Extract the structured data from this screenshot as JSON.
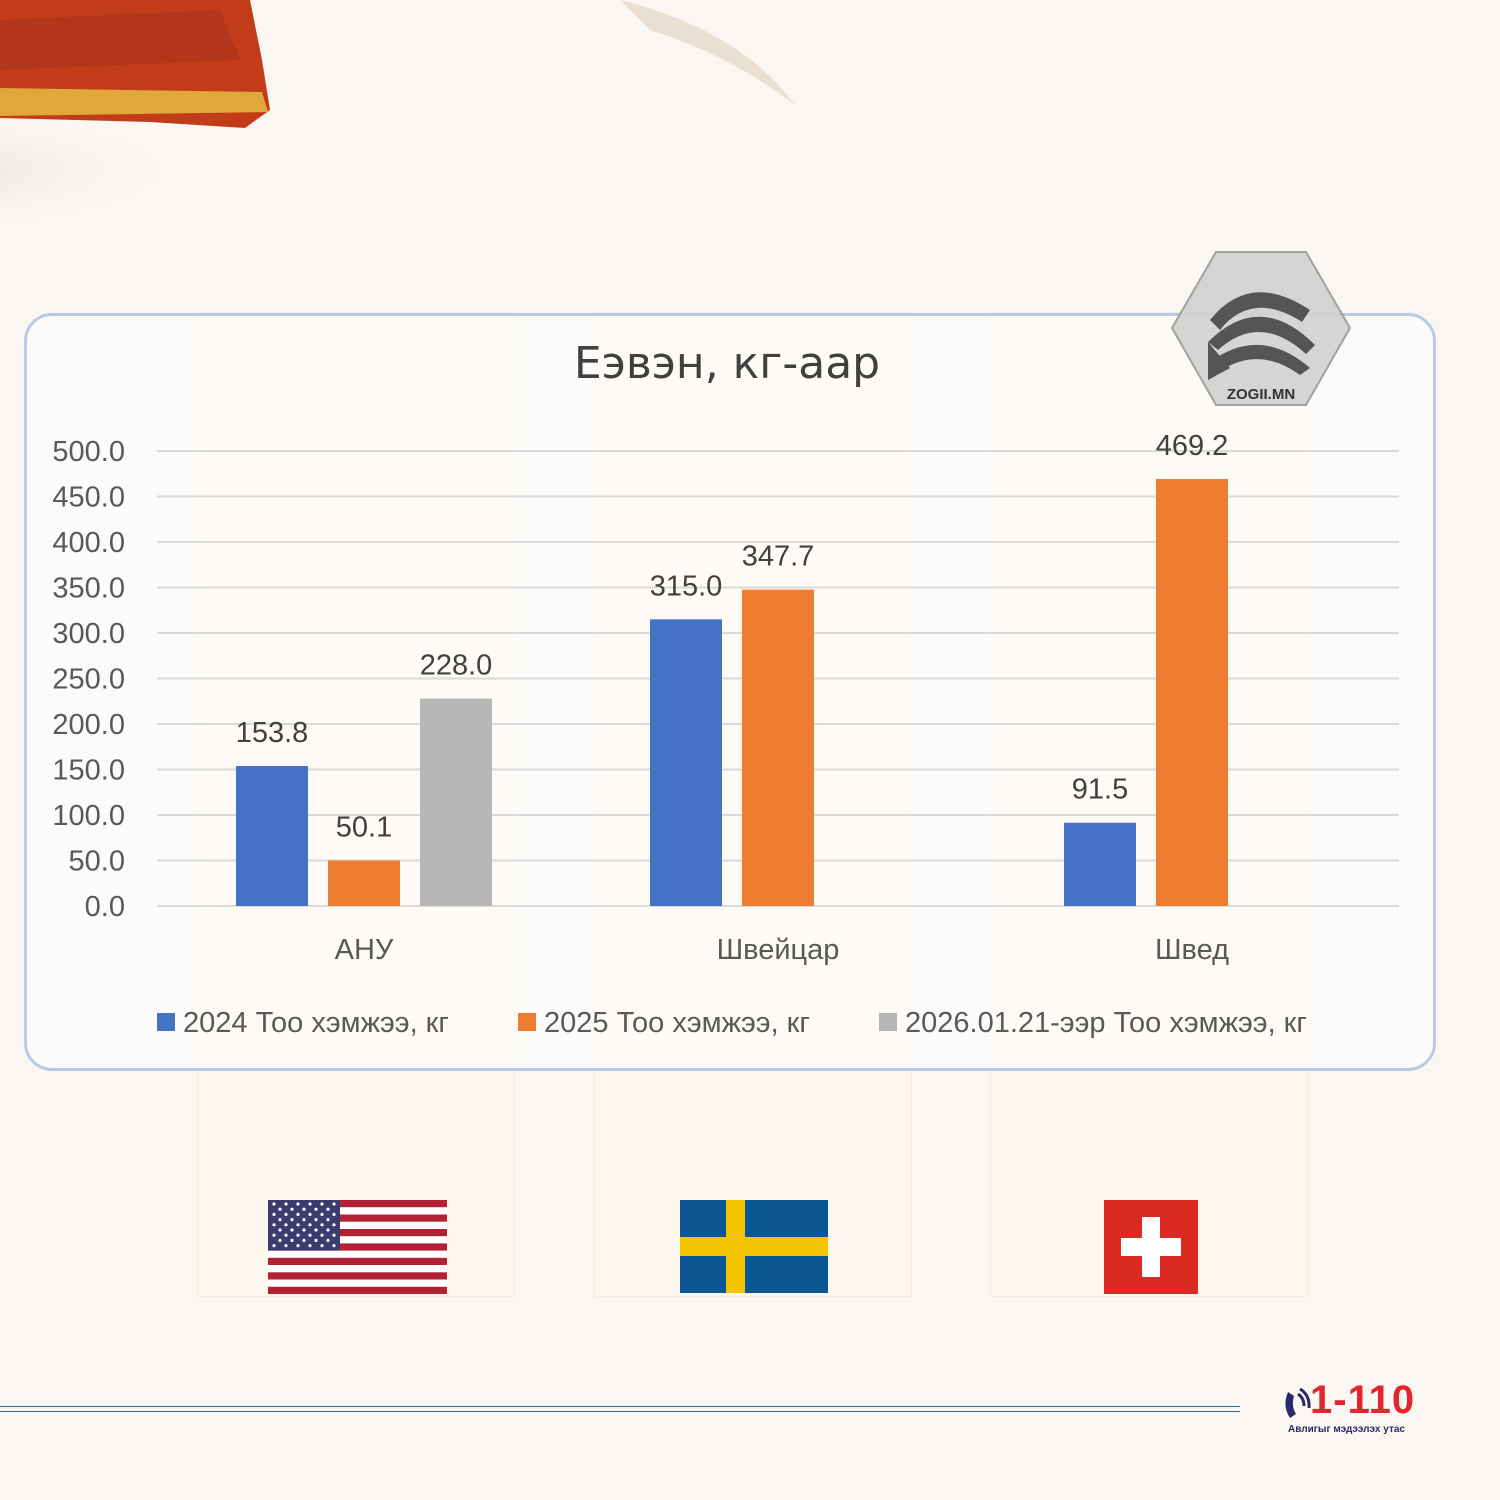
{
  "colors": {
    "series_2024": "#4472c4",
    "series_2025": "#ed7d31",
    "series_2026": "#b7b7b7",
    "gridline": "#d9d9d9",
    "hotline_red": "#e3262e"
  },
  "logo": {
    "text": "ZOGII.MN",
    "icon": "zogii-logo-icon"
  },
  "hotline": {
    "number": "1-110",
    "subtitle": "Авлигыг мэдээлэх утас",
    "icon": "phone-icon"
  },
  "flags": [
    "us-flag-icon",
    "sweden-flag-icon",
    "switzerland-flag-icon"
  ],
  "chart_data": {
    "type": "bar",
    "title": "Еэвэн, кг-аар",
    "categories": [
      "АНУ",
      "Швейцар",
      "Швед"
    ],
    "series": [
      {
        "name": "2024 Тоо хэмжээ, кг",
        "values": [
          153.8,
          315.0,
          91.5
        ]
      },
      {
        "name": "2025 Тоо хэмжээ, кг",
        "values": [
          50.1,
          347.7,
          469.2
        ]
      },
      {
        "name": "2026.01.21-ээр Тоо хэмжээ, кг",
        "values": [
          228.0,
          null,
          null
        ]
      }
    ],
    "ylim": [
      0,
      500
    ],
    "yticks": [
      "0.0",
      "50.0",
      "100.0",
      "150.0",
      "200.0",
      "250.0",
      "300.0",
      "350.0",
      "400.0",
      "450.0",
      "500.0"
    ],
    "grid": true,
    "legend": "bottom"
  }
}
